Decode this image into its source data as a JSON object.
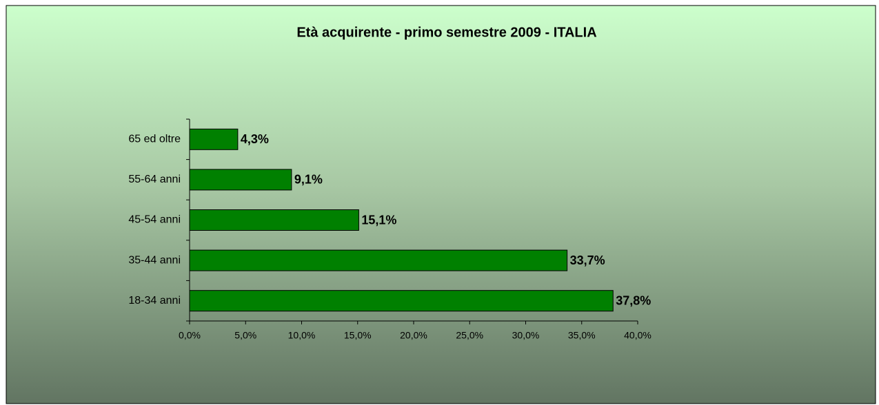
{
  "chart_data": {
    "type": "bar",
    "orientation": "horizontal",
    "title": "Età acquirente - primo semestre 2009 - ITALIA",
    "categories": [
      "65 ed oltre",
      "55-64 anni",
      "45-54 anni",
      "35-44 anni",
      "18-34 anni"
    ],
    "values": [
      4.3,
      9.1,
      15.1,
      33.7,
      37.8
    ],
    "value_labels": [
      "4,3%",
      "9,1%",
      "15,1%",
      "33,7%",
      "37,8%"
    ],
    "color": "#008000",
    "xlim": [
      0,
      40
    ],
    "xticks": [
      {
        "value": 0,
        "label": "0,0%"
      },
      {
        "value": 5,
        "label": "5,0%"
      },
      {
        "value": 10,
        "label": "10,0%"
      },
      {
        "value": 15,
        "label": "15,0%"
      },
      {
        "value": 20,
        "label": "20,0%"
      },
      {
        "value": 25,
        "label": "25,0%"
      },
      {
        "value": 30,
        "label": "30,0%"
      },
      {
        "value": 35,
        "label": "35,0%"
      },
      {
        "value": 40,
        "label": "40,0%"
      }
    ],
    "grid": false
  }
}
